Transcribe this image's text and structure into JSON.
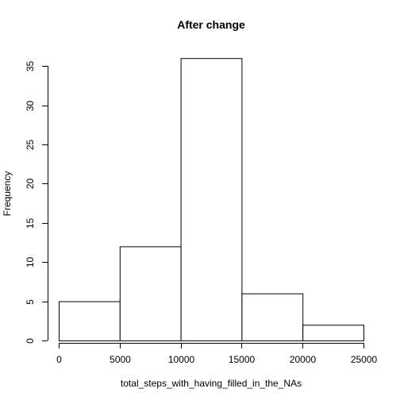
{
  "chart_data": {
    "type": "bar",
    "title": "After change",
    "xlabel": "total_steps_with_having_filled_in_the_NAs",
    "ylabel": "Frequency",
    "bins": [
      {
        "from": 0,
        "to": 5000,
        "count": 5
      },
      {
        "from": 5000,
        "to": 10000,
        "count": 12
      },
      {
        "from": 10000,
        "to": 15000,
        "count": 36
      },
      {
        "from": 15000,
        "to": 20000,
        "count": 6
      },
      {
        "from": 20000,
        "to": 25000,
        "count": 2
      }
    ],
    "xlim": [
      0,
      25000
    ],
    "ylim": [
      0,
      37.44
    ],
    "x_ticks": [
      0,
      5000,
      10000,
      15000,
      20000,
      25000
    ],
    "y_ticks": [
      0,
      5,
      10,
      15,
      20,
      25,
      30,
      35
    ],
    "grid": false,
    "colors": {
      "bar_fill": "#ffffff",
      "bar_stroke": "#000000"
    }
  }
}
